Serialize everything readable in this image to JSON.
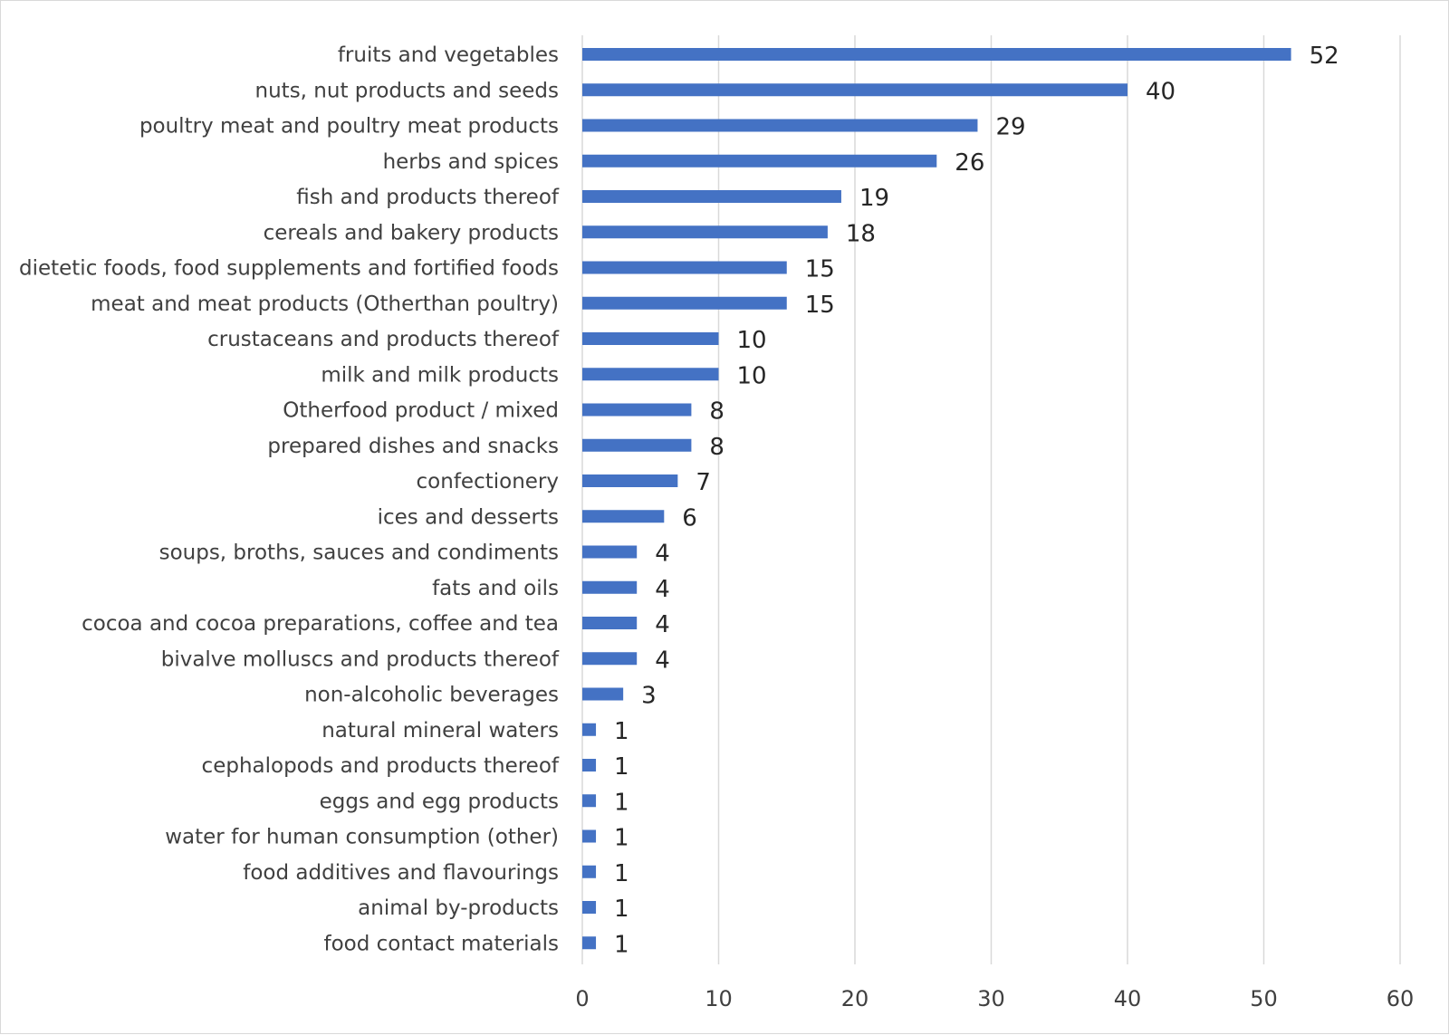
{
  "chart_data": {
    "type": "bar",
    "orientation": "horizontal",
    "title": "",
    "xlabel": "",
    "ylabel": "",
    "xlim": [
      0,
      60
    ],
    "ticks": [
      "0",
      "10",
      "20",
      "30",
      "40",
      "50",
      "60"
    ],
    "tick_values": [
      0,
      10,
      20,
      30,
      40,
      50,
      60
    ],
    "grid": true,
    "legend": "none",
    "bar_color": "#4472C4",
    "categories": [
      "fruits and vegetables",
      "nuts, nut products and seeds",
      "poultry meat and poultry meat products",
      "herbs and spices",
      "fish and products thereof",
      "cereals and bakery products",
      "dietetic foods, food supplements and fortified foods",
      "meat and meat products (Otherthan poultry)",
      "crustaceans and products thereof",
      "milk and milk products",
      "Otherfood product / mixed",
      "prepared dishes and snacks",
      "confectionery",
      "ices and desserts",
      "soups, broths, sauces and condiments",
      "fats and oils",
      "cocoa and cocoa preparations, coffee and tea",
      "bivalve molluscs and products thereof",
      "non-alcoholic beverages",
      "natural mineral waters",
      "cephalopods and products thereof",
      "eggs and egg products",
      "water for human consumption (other)",
      "food additives and flavourings",
      "animal by-products",
      "food contact materials"
    ],
    "values": [
      52,
      40,
      29,
      26,
      19,
      18,
      15,
      15,
      10,
      10,
      8,
      8,
      7,
      6,
      4,
      4,
      4,
      4,
      3,
      1,
      1,
      1,
      1,
      1,
      1,
      1
    ],
    "value_labels": [
      "52",
      "40",
      "29",
      "26",
      "19",
      "18",
      "15",
      "15",
      "10",
      "10",
      "8",
      "8",
      "7",
      "6",
      "4",
      "4",
      "4",
      "4",
      "3",
      "1",
      "1",
      "1",
      "1",
      "1",
      "1",
      "1"
    ]
  }
}
